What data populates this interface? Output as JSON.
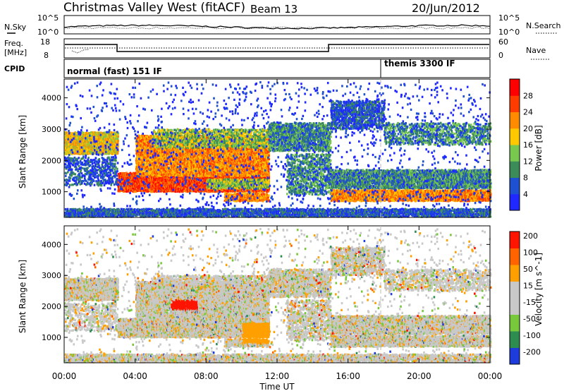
{
  "header": {
    "title": "Christmas Valley West (fitACF)",
    "beam": "Beam 13",
    "date": "20/Jun/2012"
  },
  "top_panels": {
    "nsky_label": "N.Sky",
    "nsky_ticks": [
      "10^5",
      "10^0"
    ],
    "nsearch_label": "N.Search",
    "nsearch_ticks": [
      "10^5",
      "10^0"
    ],
    "freq_label_1": "Freq.",
    "freq_label_2": "[MHz]",
    "freq_ticks": [
      "18",
      "8"
    ],
    "nave_label": "Nave",
    "nave_ticks": [
      "60",
      "0"
    ],
    "cpid_label": "CPID",
    "cpid_segments": [
      {
        "label": "normal (fast) 151 IF",
        "start_hour": 0,
        "end_hour": 18
      },
      {
        "label": "themis 3300 IF",
        "start_hour": 18,
        "end_hour": 24
      }
    ]
  },
  "axes": {
    "ylabel": "Slant Range [km]",
    "yticks": [
      "1000",
      "2000",
      "3000",
      "4000"
    ],
    "xlabel": "Time UT",
    "xticks": [
      "00:00",
      "04:00",
      "08:00",
      "12:00",
      "16:00",
      "20:00",
      "00:00"
    ]
  },
  "chart_data": [
    {
      "type": "heatmap",
      "title": "",
      "xlabel": "",
      "ylabel": "Slant Range [km]",
      "x_range_hours": [
        0,
        24
      ],
      "ylim": [
        180,
        4600
      ],
      "colorbar": {
        "label": "Power [dB]",
        "ticks": [
          "4",
          "8",
          "12",
          "16",
          "20",
          "24",
          "28"
        ],
        "range": [
          0,
          30
        ],
        "colors": [
          "#1e28ff",
          "#1e50d2",
          "#3c8c5a",
          "#78c850",
          "#ffc800",
          "#ff8c00",
          "#ff3c00",
          "#ff0000"
        ]
      }
    },
    {
      "type": "heatmap",
      "title": "",
      "xlabel": "Time UT",
      "ylabel": "Slant Range [km]",
      "x_range_hours": [
        0,
        24
      ],
      "ylim": [
        180,
        4600
      ],
      "colorbar": {
        "label": "Velocity [m s^-1]",
        "ticks": [
          "200",
          "100",
          "50",
          "15",
          "-15",
          "-50",
          "-100",
          "-200"
        ],
        "range": [
          -250,
          250
        ],
        "colors": [
          "#1e3cdc",
          "#2d8c50",
          "#78c83c",
          "#c8c8c8",
          "#c8c8c8",
          "#ffa000",
          "#ff6400",
          "#ff1400"
        ]
      }
    }
  ]
}
